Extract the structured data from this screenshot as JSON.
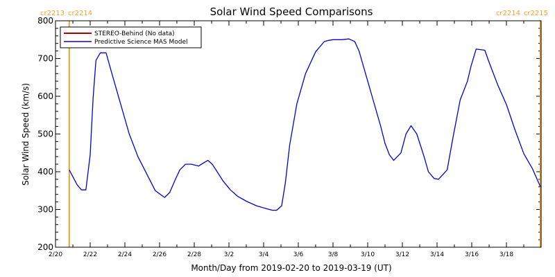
{
  "colors": {
    "frame": "#000000",
    "cr_marker": "#f0a030",
    "stereo_behind": "#b00000",
    "mas_model": "#0000d0"
  },
  "chart_data": {
    "type": "line",
    "title": "Solar Wind Speed Comparisons",
    "xlabel": "Month/Day from 2019-02-20 to 2019-03-19 (UT)",
    "ylabel": "Solar Wind Speed (km/s)",
    "ylim": [
      200,
      800
    ],
    "yticks": [
      200,
      300,
      400,
      500,
      600,
      700,
      800
    ],
    "xlim": [
      "2019-02-20",
      "2019-03-20"
    ],
    "xticks": [
      {
        "date": "2019-02-20",
        "label": "2/20"
      },
      {
        "date": "2019-02-22",
        "label": "2/22"
      },
      {
        "date": "2019-02-24",
        "label": "2/24"
      },
      {
        "date": "2019-02-26",
        "label": "2/26"
      },
      {
        "date": "2019-02-28",
        "label": "2/28"
      },
      {
        "date": "2019-03-02",
        "label": "3/2"
      },
      {
        "date": "2019-03-04",
        "label": "3/4"
      },
      {
        "date": "2019-03-06",
        "label": "3/6"
      },
      {
        "date": "2019-03-08",
        "label": "3/8"
      },
      {
        "date": "2019-03-10",
        "label": "3/10"
      },
      {
        "date": "2019-03-12",
        "label": "3/12"
      },
      {
        "date": "2019-03-14",
        "label": "3/14"
      },
      {
        "date": "2019-03-16",
        "label": "3/16"
      },
      {
        "date": "2019-03-18",
        "label": "3/18"
      }
    ],
    "cr_markers": [
      {
        "date": "2019-02-20T19:00",
        "left_label": "cr2213",
        "right_label": "cr2214",
        "label_side": "left"
      },
      {
        "date": "2019-03-19T23:00",
        "left_label": "cr2214",
        "right_label": "cr2215",
        "label_side": "right"
      }
    ],
    "legend": {
      "placement": "top-left",
      "entries": [
        "STEREO-Behind (No data)",
        "Predictive Science MAS Model"
      ]
    },
    "series": [
      {
        "name": "STEREO-Behind (No data)",
        "color_key": "stereo_behind",
        "x": [],
        "y": []
      },
      {
        "name": "Predictive Science MAS Model",
        "color_key": "mas_model",
        "x": [
          "2019-02-20T19:00",
          "2019-02-21T06:00",
          "2019-02-21T12:00",
          "2019-02-21T18:00",
          "2019-02-22T00:00",
          "2019-02-22T04:00",
          "2019-02-22T08:00",
          "2019-02-22T14:00",
          "2019-02-22T22:00",
          "2019-02-23T06:00",
          "2019-02-23T18:00",
          "2019-02-24T06:00",
          "2019-02-24T18:00",
          "2019-02-25T06:00",
          "2019-02-25T18:00",
          "2019-02-26T07:00",
          "2019-02-26T14:00",
          "2019-02-26T22:00",
          "2019-02-27T04:00",
          "2019-02-27T12:00",
          "2019-02-27T20:00",
          "2019-02-28T06:00",
          "2019-02-28T14:00",
          "2019-02-28T19:00",
          "2019-03-01T01:00",
          "2019-03-01T07:00",
          "2019-03-01T16:00",
          "2019-03-02T02:00",
          "2019-03-02T12:00",
          "2019-03-03T00:00",
          "2019-03-03T14:00",
          "2019-03-04T04:00",
          "2019-03-04T12:00",
          "2019-03-04T18:00",
          "2019-03-05T01:00",
          "2019-03-05T06:00",
          "2019-03-05T12:00",
          "2019-03-05T22:00",
          "2019-03-06T10:00",
          "2019-03-07T00:00",
          "2019-03-07T12:00",
          "2019-03-07T18:00",
          "2019-03-08T00:00",
          "2019-03-08T12:00",
          "2019-03-08T22:00",
          "2019-03-09T06:00",
          "2019-03-09T12:00",
          "2019-03-09T18:00",
          "2019-03-10T06:00",
          "2019-03-10T18:00",
          "2019-03-11T00:00",
          "2019-03-11T06:00",
          "2019-03-11T12:00",
          "2019-03-11T22:00",
          "2019-03-12T05:00",
          "2019-03-12T12:00",
          "2019-03-12T20:00",
          "2019-03-13T06:00",
          "2019-03-13T12:00",
          "2019-03-13T20:00",
          "2019-03-14T02:00",
          "2019-03-14T14:00",
          "2019-03-14T22:00",
          "2019-03-15T08:00",
          "2019-03-15T14:00",
          "2019-03-15T18:00",
          "2019-03-15T23:00",
          "2019-03-16T06:00",
          "2019-03-16T18:00",
          "2019-03-17T00:00",
          "2019-03-17T12:00",
          "2019-03-18T00:00",
          "2019-03-18T12:00",
          "2019-03-19T00:00",
          "2019-03-19T12:00",
          "2019-03-19T23:00"
        ],
        "y": [
          405,
          365,
          352,
          352,
          445,
          595,
          695,
          715,
          715,
          660,
          580,
          500,
          440,
          395,
          350,
          332,
          345,
          380,
          405,
          420,
          420,
          415,
          425,
          430,
          420,
          402,
          375,
          352,
          335,
          322,
          310,
          302,
          298,
          298,
          310,
          370,
          470,
          580,
          660,
          718,
          745,
          748,
          750,
          750,
          752,
          745,
          720,
          680,
          600,
          520,
          475,
          445,
          430,
          450,
          500,
          522,
          500,
          440,
          400,
          382,
          380,
          405,
          490,
          590,
          620,
          640,
          680,
          725,
          722,
          690,
          630,
          578,
          510,
          448,
          408,
          360
        ]
      }
    ]
  }
}
